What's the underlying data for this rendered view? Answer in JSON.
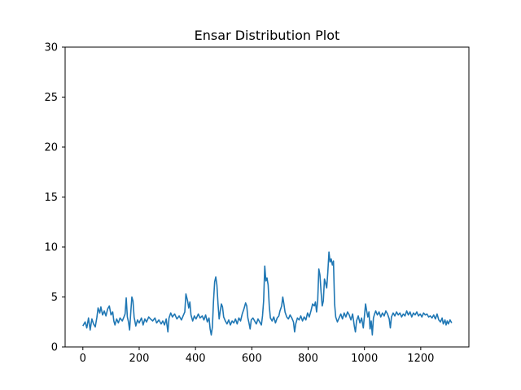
{
  "chart_data": {
    "type": "line",
    "title": "Ensar Distribution Plot",
    "xlabel": "",
    "ylabel": "",
    "xlim": [
      -63,
      1371
    ],
    "ylim": [
      0,
      30
    ],
    "xticks": [
      0,
      200,
      400,
      600,
      800,
      1000,
      1200
    ],
    "yticks": [
      0,
      5,
      10,
      15,
      20,
      25,
      30
    ],
    "grid": false,
    "series": [
      {
        "color": "#1f77b4",
        "points": [
          [
            0,
            2.1
          ],
          [
            8,
            2.5
          ],
          [
            14,
            1.9
          ],
          [
            20,
            2.9
          ],
          [
            26,
            1.7
          ],
          [
            32,
            2.8
          ],
          [
            38,
            2.3
          ],
          [
            44,
            2.0
          ],
          [
            50,
            3.0
          ],
          [
            54,
            3.9
          ],
          [
            60,
            3.4
          ],
          [
            64,
            4.0
          ],
          [
            70,
            3.2
          ],
          [
            76,
            3.6
          ],
          [
            82,
            3.1
          ],
          [
            88,
            3.8
          ],
          [
            94,
            4.1
          ],
          [
            100,
            3.2
          ],
          [
            106,
            3.5
          ],
          [
            110,
            2.6
          ],
          [
            114,
            2.2
          ],
          [
            120,
            2.8
          ],
          [
            126,
            2.4
          ],
          [
            132,
            2.9
          ],
          [
            140,
            2.6
          ],
          [
            146,
            3.0
          ],
          [
            150,
            3.3
          ],
          [
            154,
            4.9
          ],
          [
            158,
            3.0
          ],
          [
            162,
            2.5
          ],
          [
            166,
            1.7
          ],
          [
            170,
            3.4
          ],
          [
            174,
            5.0
          ],
          [
            178,
            4.6
          ],
          [
            182,
            3.0
          ],
          [
            188,
            2.1
          ],
          [
            194,
            2.7
          ],
          [
            200,
            2.4
          ],
          [
            208,
            2.9
          ],
          [
            214,
            2.2
          ],
          [
            220,
            2.8
          ],
          [
            226,
            2.5
          ],
          [
            234,
            3.0
          ],
          [
            240,
            2.8
          ],
          [
            248,
            2.6
          ],
          [
            256,
            2.9
          ],
          [
            262,
            2.4
          ],
          [
            270,
            2.7
          ],
          [
            278,
            2.3
          ],
          [
            284,
            2.6
          ],
          [
            290,
            2.2
          ],
          [
            296,
            2.8
          ],
          [
            302,
            1.5
          ],
          [
            306,
            2.9
          ],
          [
            312,
            3.4
          ],
          [
            318,
            3.0
          ],
          [
            326,
            3.3
          ],
          [
            334,
            2.8
          ],
          [
            342,
            3.1
          ],
          [
            350,
            2.7
          ],
          [
            356,
            3.1
          ],
          [
            362,
            3.5
          ],
          [
            366,
            5.3
          ],
          [
            372,
            4.6
          ],
          [
            376,
            3.9
          ],
          [
            380,
            4.5
          ],
          [
            384,
            3.2
          ],
          [
            390,
            2.6
          ],
          [
            396,
            3.1
          ],
          [
            402,
            2.8
          ],
          [
            410,
            3.3
          ],
          [
            416,
            2.9
          ],
          [
            424,
            3.1
          ],
          [
            430,
            2.7
          ],
          [
            436,
            3.2
          ],
          [
            442,
            2.5
          ],
          [
            448,
            2.9
          ],
          [
            452,
            1.8
          ],
          [
            456,
            1.2
          ],
          [
            460,
            2.0
          ],
          [
            464,
            4.6
          ],
          [
            468,
            6.5
          ],
          [
            472,
            7.0
          ],
          [
            476,
            6.2
          ],
          [
            480,
            4.3
          ],
          [
            484,
            2.8
          ],
          [
            488,
            3.6
          ],
          [
            492,
            4.3
          ],
          [
            496,
            4.0
          ],
          [
            500,
            3.0
          ],
          [
            506,
            2.6
          ],
          [
            512,
            2.3
          ],
          [
            518,
            2.7
          ],
          [
            524,
            2.2
          ],
          [
            530,
            2.6
          ],
          [
            536,
            2.4
          ],
          [
            542,
            2.8
          ],
          [
            548,
            2.3
          ],
          [
            554,
            2.9
          ],
          [
            560,
            2.6
          ],
          [
            566,
            3.3
          ],
          [
            572,
            3.8
          ],
          [
            578,
            4.4
          ],
          [
            582,
            4.1
          ],
          [
            586,
            2.9
          ],
          [
            590,
            2.4
          ],
          [
            594,
            1.8
          ],
          [
            598,
            2.7
          ],
          [
            604,
            2.9
          ],
          [
            610,
            2.6
          ],
          [
            616,
            2.3
          ],
          [
            622,
            2.8
          ],
          [
            628,
            2.5
          ],
          [
            634,
            2.2
          ],
          [
            638,
            3.1
          ],
          [
            642,
            4.6
          ],
          [
            646,
            8.1
          ],
          [
            650,
            6.6
          ],
          [
            654,
            6.9
          ],
          [
            658,
            6.2
          ],
          [
            662,
            4.1
          ],
          [
            666,
            2.9
          ],
          [
            672,
            2.6
          ],
          [
            678,
            3.0
          ],
          [
            684,
            2.4
          ],
          [
            690,
            2.9
          ],
          [
            696,
            3.1
          ],
          [
            700,
            3.6
          ],
          [
            706,
            4.1
          ],
          [
            710,
            5.0
          ],
          [
            714,
            4.3
          ],
          [
            718,
            3.5
          ],
          [
            724,
            3.0
          ],
          [
            730,
            2.8
          ],
          [
            736,
            3.2
          ],
          [
            742,
            2.9
          ],
          [
            748,
            2.5
          ],
          [
            752,
            1.5
          ],
          [
            756,
            2.3
          ],
          [
            762,
            2.9
          ],
          [
            768,
            2.7
          ],
          [
            774,
            3.1
          ],
          [
            780,
            2.6
          ],
          [
            786,
            3.0
          ],
          [
            792,
            2.7
          ],
          [
            798,
            3.4
          ],
          [
            804,
            3.0
          ],
          [
            810,
            3.6
          ],
          [
            816,
            4.3
          ],
          [
            822,
            4.1
          ],
          [
            826,
            4.5
          ],
          [
            830,
            3.5
          ],
          [
            834,
            4.6
          ],
          [
            838,
            7.8
          ],
          [
            842,
            7.2
          ],
          [
            846,
            5.5
          ],
          [
            850,
            4.1
          ],
          [
            854,
            4.6
          ],
          [
            858,
            6.8
          ],
          [
            862,
            6.4
          ],
          [
            866,
            5.9
          ],
          [
            870,
            7.5
          ],
          [
            874,
            9.5
          ],
          [
            878,
            8.5
          ],
          [
            882,
            8.8
          ],
          [
            886,
            8.2
          ],
          [
            890,
            8.6
          ],
          [
            894,
            4.3
          ],
          [
            898,
            3.0
          ],
          [
            904,
            2.5
          ],
          [
            910,
            2.9
          ],
          [
            916,
            3.3
          ],
          [
            922,
            2.8
          ],
          [
            928,
            3.4
          ],
          [
            934,
            3.0
          ],
          [
            940,
            3.5
          ],
          [
            946,
            3.2
          ],
          [
            952,
            2.7
          ],
          [
            958,
            3.3
          ],
          [
            964,
            2.1
          ],
          [
            968,
            1.5
          ],
          [
            972,
            2.6
          ],
          [
            978,
            3.1
          ],
          [
            984,
            2.4
          ],
          [
            990,
            2.9
          ],
          [
            996,
            1.9
          ],
          [
            1000,
            3.1
          ],
          [
            1004,
            4.3
          ],
          [
            1008,
            3.6
          ],
          [
            1012,
            3.0
          ],
          [
            1016,
            3.5
          ],
          [
            1020,
            1.8
          ],
          [
            1024,
            2.6
          ],
          [
            1028,
            1.2
          ],
          [
            1032,
            2.9
          ],
          [
            1036,
            3.3
          ],
          [
            1040,
            3.6
          ],
          [
            1046,
            3.2
          ],
          [
            1052,
            3.5
          ],
          [
            1058,
            3.0
          ],
          [
            1064,
            3.4
          ],
          [
            1070,
            3.1
          ],
          [
            1076,
            3.6
          ],
          [
            1082,
            3.3
          ],
          [
            1088,
            2.8
          ],
          [
            1092,
            1.9
          ],
          [
            1096,
            3.0
          ],
          [
            1102,
            3.4
          ],
          [
            1108,
            3.1
          ],
          [
            1114,
            3.5
          ],
          [
            1120,
            3.2
          ],
          [
            1126,
            3.4
          ],
          [
            1132,
            3.0
          ],
          [
            1138,
            3.3
          ],
          [
            1144,
            3.1
          ],
          [
            1150,
            3.6
          ],
          [
            1156,
            3.2
          ],
          [
            1162,
            3.5
          ],
          [
            1168,
            3.0
          ],
          [
            1174,
            3.4
          ],
          [
            1180,
            3.2
          ],
          [
            1186,
            3.5
          ],
          [
            1192,
            3.1
          ],
          [
            1198,
            3.3
          ],
          [
            1204,
            3.0
          ],
          [
            1210,
            3.4
          ],
          [
            1216,
            3.2
          ],
          [
            1222,
            3.3
          ],
          [
            1228,
            3.0
          ],
          [
            1234,
            3.1
          ],
          [
            1240,
            2.9
          ],
          [
            1246,
            3.2
          ],
          [
            1252,
            2.8
          ],
          [
            1258,
            3.3
          ],
          [
            1264,
            2.7
          ],
          [
            1270,
            2.5
          ],
          [
            1276,
            2.9
          ],
          [
            1280,
            2.3
          ],
          [
            1286,
            2.7
          ],
          [
            1290,
            2.2
          ],
          [
            1294,
            2.6
          ],
          [
            1298,
            2.3
          ],
          [
            1304,
            2.7
          ],
          [
            1310,
            2.4
          ]
        ]
      }
    ]
  }
}
